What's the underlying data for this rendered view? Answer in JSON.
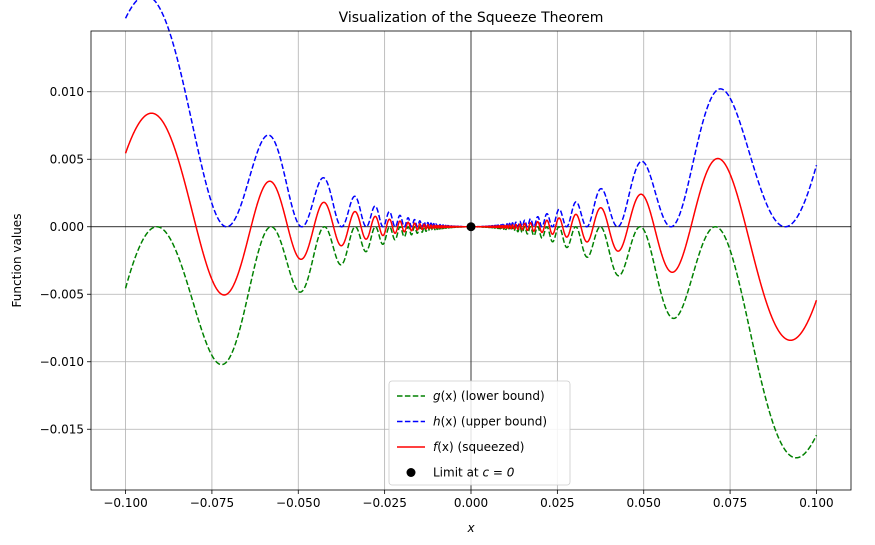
{
  "chart_data": {
    "type": "line",
    "title": "Visualization of the Squeeze Theorem",
    "xlabel": "x",
    "ylabel": "Function values",
    "xlim": [
      -0.11,
      0.11
    ],
    "ylim": [
      -0.0195,
      0.0145
    ],
    "x_ticks": [
      -0.1,
      -0.075,
      -0.05,
      -0.025,
      0.0,
      0.025,
      0.05,
      0.075,
      0.1
    ],
    "x_tick_labels": [
      "−0.100",
      "−0.075",
      "−0.050",
      "−0.025",
      "0.000",
      "0.025",
      "0.050",
      "0.075",
      "0.100"
    ],
    "y_ticks": [
      -0.015,
      -0.01,
      -0.005,
      0.0,
      0.005,
      0.01
    ],
    "y_tick_labels": [
      "−0.015",
      "−0.010",
      "−0.005",
      "0.000",
      "0.005",
      "0.010"
    ],
    "grid": true,
    "legend_position": "bottom-center",
    "domain": [
      -0.1,
      0.1
    ],
    "series": [
      {
        "name": "g(x) (lower bound)",
        "italic_part": "g",
        "suffix": "(x) (lower bound)",
        "formula": "x^2*sin(1/x) - x^2",
        "color": "#008000",
        "linestyle": "dashed"
      },
      {
        "name": "h(x) (upper bound)",
        "italic_part": "h",
        "suffix": "(x) (upper bound)",
        "formula": "x^2*sin(1/x) + x^2",
        "color": "#0000ff",
        "linestyle": "dashed"
      },
      {
        "name": "f(x) (squeezed)",
        "italic_part": "f",
        "suffix": "(x) (squeezed)",
        "formula": "x^2*sin(1/x)",
        "color": "#ff0000",
        "linestyle": "solid"
      }
    ],
    "point": {
      "name": "Limit at c = 0",
      "label_prefix": "Limit at ",
      "label_math": "c = 0",
      "x": 0.0,
      "y": 0.0,
      "color": "#000000"
    },
    "reference_lines": {
      "horizontal_y": 0.0,
      "vertical_x": 0.0,
      "color": "#000000"
    }
  }
}
